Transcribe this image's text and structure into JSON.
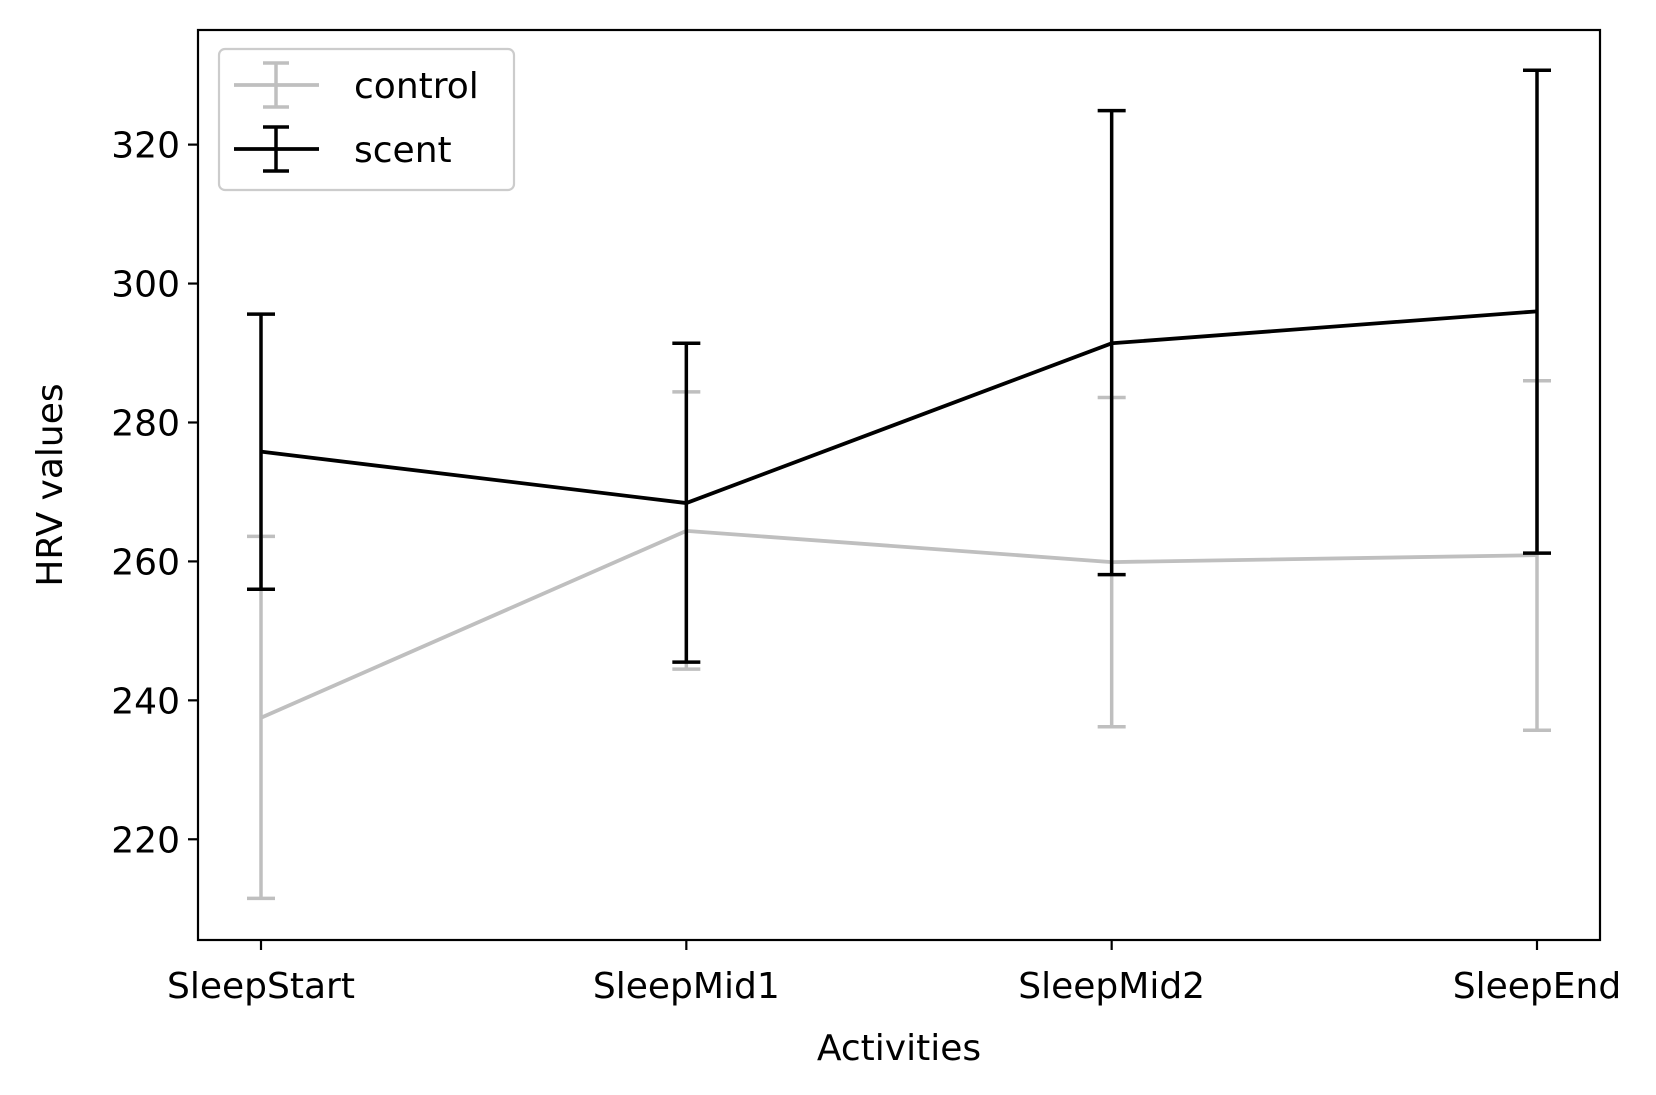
{
  "chart_data": {
    "type": "line",
    "title": "",
    "xlabel": "Activities",
    "ylabel": "HRV values",
    "categories": [
      "SleepStart",
      "SleepMid1",
      "SleepMid2",
      "SleepEnd"
    ],
    "ylim": [
      205.5,
      336.5
    ],
    "yticks": [
      220,
      240,
      260,
      280,
      300,
      320
    ],
    "grid": false,
    "legend_position": "top-left",
    "error_bars": true,
    "series": [
      {
        "name": "control",
        "color": "#bfbfbf",
        "values": [
          237.5,
          264.4,
          259.9,
          260.9
        ],
        "lower": [
          211.5,
          244.5,
          236.2,
          235.7
        ],
        "upper": [
          263.6,
          284.4,
          283.6,
          286.0
        ]
      },
      {
        "name": "scent",
        "color": "#000000",
        "values": [
          275.8,
          268.4,
          291.4,
          296.0
        ],
        "lower": [
          256.0,
          245.5,
          258.1,
          261.2
        ],
        "upper": [
          295.6,
          291.4,
          324.9,
          330.7
        ]
      }
    ]
  }
}
